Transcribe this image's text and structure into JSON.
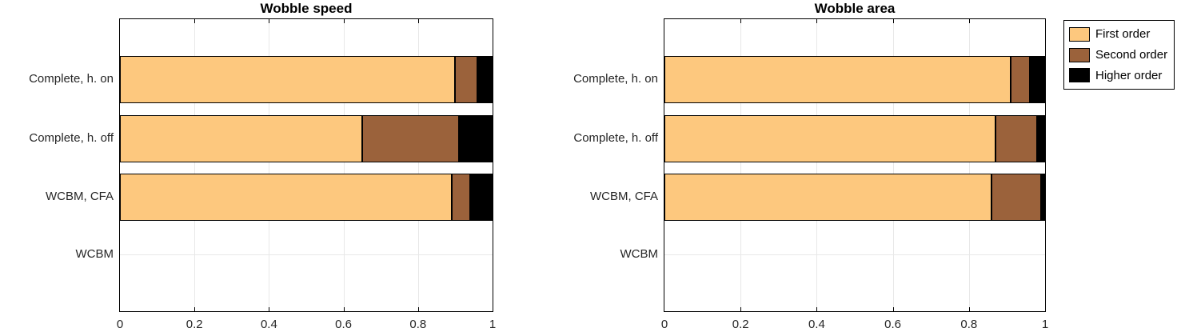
{
  "figure": {
    "background": "#ffffff",
    "axis_color": "#000000",
    "grid_color": "#e8e8e8",
    "tick_label_color": "#262626"
  },
  "legend": {
    "position": "top-right-outside",
    "entries": [
      {
        "label": "First order",
        "color": "#FDC87E"
      },
      {
        "label": "Second order",
        "color": "#9B623B"
      },
      {
        "label": "Higher order",
        "color": "#000000"
      }
    ]
  },
  "chart_data": [
    {
      "type": "bar",
      "orientation": "horizontal",
      "stacked": true,
      "title": "Wobble speed",
      "categories": [
        "Complete, h. on",
        "Complete, h. off",
        "WCBM, CFA",
        "WCBM"
      ],
      "series": [
        {
          "name": "First order",
          "color": "#FDC87E",
          "values": [
            0.9,
            0.65,
            0.89,
            0
          ]
        },
        {
          "name": "Second order",
          "color": "#9B623B",
          "values": [
            0.06,
            0.26,
            0.05,
            0
          ]
        },
        {
          "name": "Higher order",
          "color": "#000000",
          "values": [
            0.04,
            0.09,
            0.06,
            0
          ]
        }
      ],
      "xlim": [
        0,
        1
      ],
      "xticks": [
        0,
        0.2,
        0.4,
        0.6,
        0.8,
        1
      ],
      "xtick_labels": [
        "0",
        "0.2",
        "0.4",
        "0.6",
        "0.8",
        "1"
      ],
      "grid": true
    },
    {
      "type": "bar",
      "orientation": "horizontal",
      "stacked": true,
      "title": "Wobble area",
      "categories": [
        "Complete, h. on",
        "Complete, h. off",
        "WCBM, CFA",
        "WCBM"
      ],
      "series": [
        {
          "name": "First order",
          "color": "#FDC87E",
          "values": [
            0.91,
            0.87,
            0.86,
            0
          ]
        },
        {
          "name": "Second order",
          "color": "#9B623B",
          "values": [
            0.05,
            0.11,
            0.13,
            0
          ]
        },
        {
          "name": "Higher order",
          "color": "#000000",
          "values": [
            0.04,
            0.02,
            0.01,
            0
          ]
        }
      ],
      "xlim": [
        0,
        1
      ],
      "xticks": [
        0,
        0.2,
        0.4,
        0.6,
        0.8,
        1
      ],
      "xtick_labels": [
        "0",
        "0.2",
        "0.4",
        "0.6",
        "0.8",
        "1"
      ],
      "grid": true
    }
  ]
}
